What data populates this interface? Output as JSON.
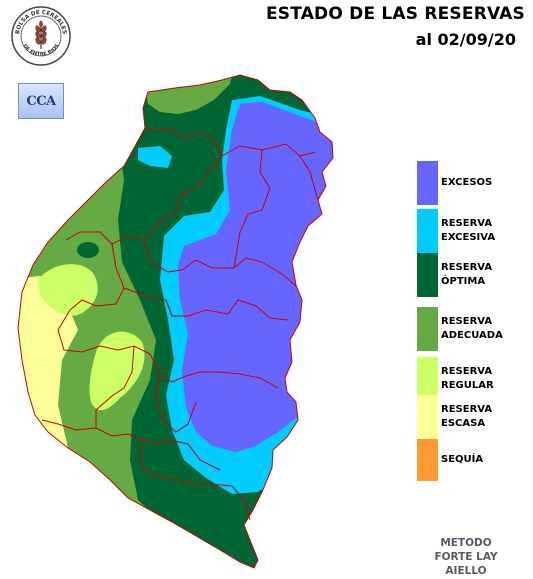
{
  "header": {
    "title": "ESTADO DE LAS RESERVAS",
    "date": "al 02/09/20"
  },
  "logos": {
    "bolsa_seal_text_top": "BOLSA DE CEREALES",
    "bolsa_seal_text_bottom": "DE ENTRE RIOS",
    "cca_badge": "CCA"
  },
  "legend": {
    "items": [
      {
        "label": "EXCESOS",
        "color": "#6666ff"
      },
      {
        "label": "RESERVA\nEXCESIVA",
        "color": "#00ccff"
      },
      {
        "label": "RESERVA\nÓPTIMA",
        "color": "#006633"
      },
      {
        "label": "RESERVA\nADECUADA",
        "color": "#66aa44"
      },
      {
        "label": "RESERVA\nREGULAR",
        "color": "#ccff66"
      },
      {
        "label": "RESERVA\nESCASA",
        "color": "#ffff99"
      },
      {
        "label": "SEQUÍA",
        "color": "#ff9933"
      }
    ]
  },
  "footer": {
    "method": "METODO\nFORTE LAY\nAIELLO"
  }
}
